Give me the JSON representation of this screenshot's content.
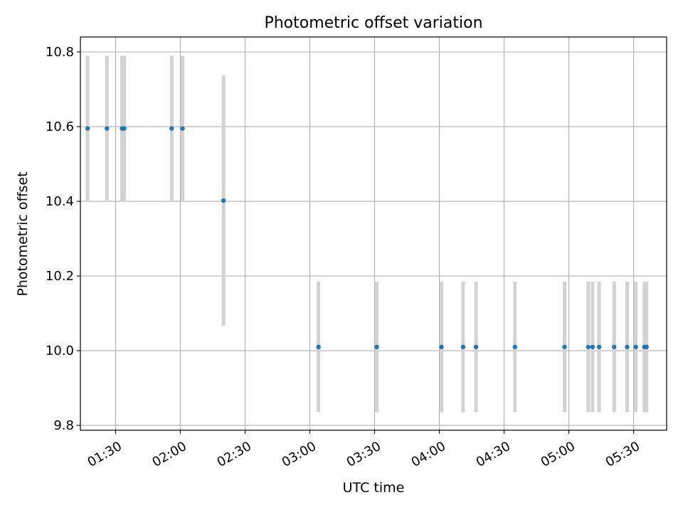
{
  "chart_data": {
    "type": "scatter",
    "title": "Photometric offset variation",
    "xlabel": "UTC time",
    "ylabel": "Photometric offset",
    "x_ticks": [
      "01:30",
      "02:00",
      "02:30",
      "03:00",
      "03:30",
      "04:00",
      "04:30",
      "05:00",
      "05:30"
    ],
    "y_ticks": [
      "9.8",
      "10.0",
      "10.2",
      "10.4",
      "10.6",
      "10.8"
    ],
    "y_tick_values": [
      9.8,
      10.0,
      10.2,
      10.4,
      10.6,
      10.8
    ],
    "xlim": [
      "01:17",
      "05:42"
    ],
    "ylim": [
      9.787,
      10.84
    ],
    "grid": true,
    "colors": {
      "point": "#1f77b4",
      "errorbar": "#d3d3d3",
      "grid": "#b0b0b0"
    },
    "points": [
      {
        "x": "01:17",
        "y": 10.595,
        "yerr": 0.195
      },
      {
        "x": "01:26",
        "y": 10.595,
        "yerr": 0.195
      },
      {
        "x": "01:33",
        "y": 10.595,
        "yerr": 0.195
      },
      {
        "x": "01:34",
        "y": 10.595,
        "yerr": 0.195
      },
      {
        "x": "01:56",
        "y": 10.595,
        "yerr": 0.195
      },
      {
        "x": "02:01",
        "y": 10.595,
        "yerr": 0.195
      },
      {
        "x": "02:20",
        "y": 10.402,
        "yerr": 0.335
      },
      {
        "x": "03:04",
        "y": 10.01,
        "yerr": 0.175
      },
      {
        "x": "03:31",
        "y": 10.01,
        "yerr": 0.175
      },
      {
        "x": "04:01",
        "y": 10.01,
        "yerr": 0.175
      },
      {
        "x": "04:11",
        "y": 10.01,
        "yerr": 0.175
      },
      {
        "x": "04:17",
        "y": 10.01,
        "yerr": 0.175
      },
      {
        "x": "04:35",
        "y": 10.01,
        "yerr": 0.175
      },
      {
        "x": "04:58",
        "y": 10.01,
        "yerr": 0.175
      },
      {
        "x": "05:09",
        "y": 10.01,
        "yerr": 0.175
      },
      {
        "x": "05:11",
        "y": 10.01,
        "yerr": 0.175
      },
      {
        "x": "05:14",
        "y": 10.01,
        "yerr": 0.175
      },
      {
        "x": "05:21",
        "y": 10.01,
        "yerr": 0.175
      },
      {
        "x": "05:27",
        "y": 10.01,
        "yerr": 0.175
      },
      {
        "x": "05:31",
        "y": 10.01,
        "yerr": 0.175
      },
      {
        "x": "05:35",
        "y": 10.01,
        "yerr": 0.175
      },
      {
        "x": "05:36",
        "y": 10.01,
        "yerr": 0.175
      }
    ]
  }
}
